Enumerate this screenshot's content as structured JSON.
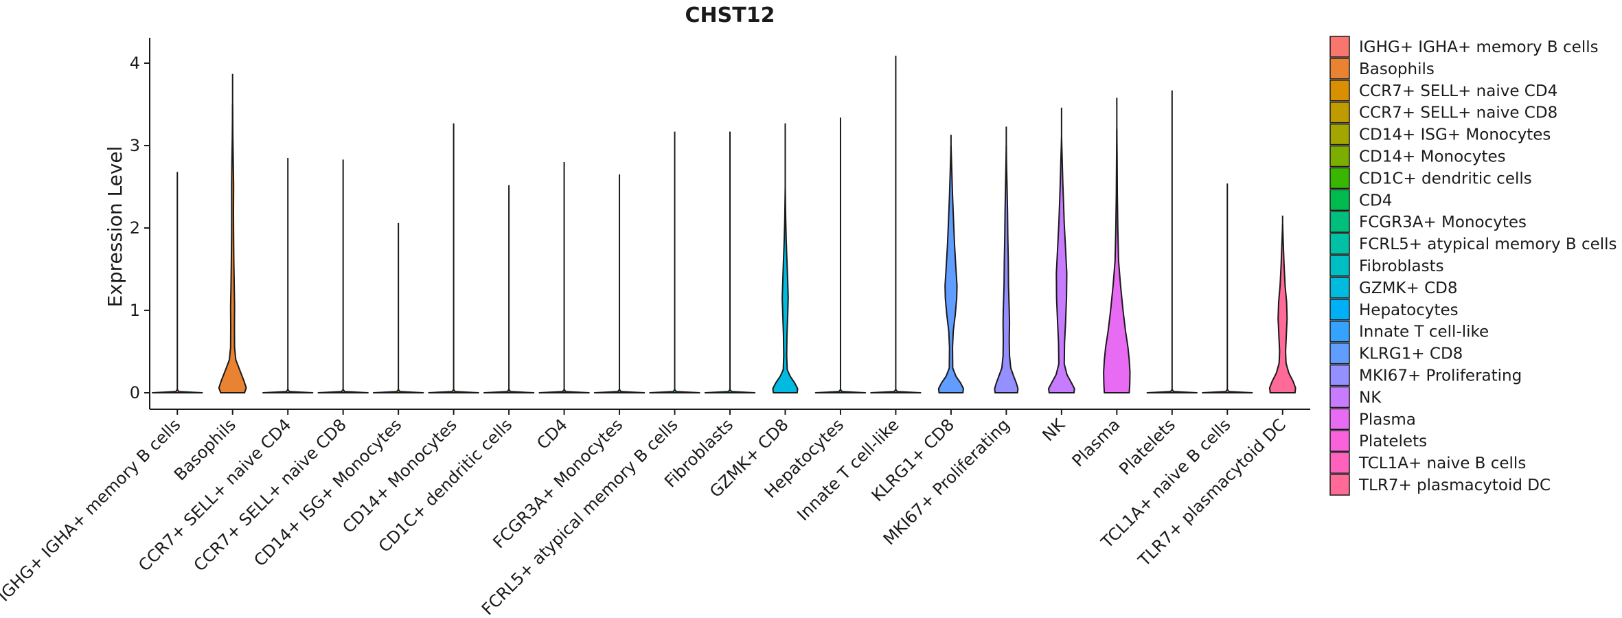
{
  "chart_data": {
    "type": "violin",
    "title": "CHST12",
    "xlabel": "",
    "ylabel": "Expression Level",
    "ylim": [
      -0.2,
      4.3
    ],
    "yticks": [
      0,
      1,
      2,
      3,
      4
    ],
    "legend_position": "right",
    "categories": [
      {
        "name": "IGHG+ IGHA+ memory B cells",
        "legend_label": " IGHG+ IGHA+ memory B cells",
        "color": "#F8766D",
        "max": 2.68,
        "shape": "flat"
      },
      {
        "name": "Basophils",
        "legend_label": "Basophils",
        "color": "#EA8331",
        "max": 3.87,
        "shape": "basophils"
      },
      {
        "name": "CCR7+ SELL+ naive CD4",
        "legend_label": "CCR7+ SELL+ naive CD4",
        "color": "#D89000",
        "max": 2.85,
        "shape": "flat"
      },
      {
        "name": "CCR7+ SELL+ naive CD8",
        "legend_label": "CCR7+ SELL+ naive CD8",
        "color": "#C09B00",
        "max": 2.83,
        "shape": "flat"
      },
      {
        "name": "CD14+ ISG+ Monocytes",
        "legend_label": "CD14+ ISG+ Monocytes",
        "color": "#A3A500",
        "max": 2.06,
        "shape": "flat"
      },
      {
        "name": "CD14+ Monocytes",
        "legend_label": "CD14+ Monocytes",
        "color": "#7CAE00",
        "max": 3.27,
        "shape": "flat"
      },
      {
        "name": "CD1C+ dendritic cells",
        "legend_label": "CD1C+ dendritic cells",
        "color": "#39B600",
        "max": 2.52,
        "shape": "flat"
      },
      {
        "name": "CD4",
        "legend_label": "CD4",
        "color": "#00BB4E",
        "max": 2.8,
        "shape": "flat"
      },
      {
        "name": "FCGR3A+ Monocytes",
        "legend_label": "FCGR3A+ Monocytes",
        "color": "#00BF7D",
        "max": 2.65,
        "shape": "flat"
      },
      {
        "name": "FCRL5+ atypical memory B cells",
        "legend_label": "FCRL5+ atypical memory B cells",
        "color": "#00C1A3",
        "max": 3.17,
        "shape": "flat"
      },
      {
        "name": "Fibroblasts",
        "legend_label": "Fibroblasts",
        "color": "#00BFC4",
        "max": 3.17,
        "shape": "flat"
      },
      {
        "name": "GZMK+ CD8",
        "legend_label": "GZMK+ CD8",
        "color": "#00BAE0",
        "max": 3.27,
        "shape": "gzmk"
      },
      {
        "name": "Hepatocytes",
        "legend_label": "Hepatocytes",
        "color": "#00B0F6",
        "max": 3.34,
        "shape": "flat"
      },
      {
        "name": "Innate T cell-like",
        "legend_label": "Innate T cell-like",
        "color": "#35A2FF",
        "max": 4.09,
        "shape": "flat"
      },
      {
        "name": "KLRG1+ CD8",
        "legend_label": "KLRG1+ CD8",
        "color": "#619CFF",
        "max": 3.13,
        "shape": "klrg1"
      },
      {
        "name": "MKI67+ Proliferating",
        "legend_label": "MKI67+ Proliferating",
        "color": "#9590FF",
        "max": 3.23,
        "shape": "mki67"
      },
      {
        "name": "NK",
        "legend_label": "NK",
        "color": "#C77CFF",
        "max": 3.46,
        "shape": "nk"
      },
      {
        "name": "Plasma",
        "legend_label": "Plasma",
        "color": "#E76BF3",
        "max": 3.58,
        "shape": "plasma"
      },
      {
        "name": "Platelets",
        "legend_label": "Platelets",
        "color": "#FA62DB",
        "max": 3.67,
        "shape": "flat"
      },
      {
        "name": "TCL1A+ naive B cells",
        "legend_label": "TCL1A+ naive B cells",
        "color": "#FF62BC",
        "max": 2.54,
        "shape": "flat"
      },
      {
        "name": "TLR7+ plasmacytoid DC",
        "legend_label": "TLR7+ plasmacytoid DC",
        "color": "#FF6A98",
        "max": 2.15,
        "shape": "tlr7"
      }
    ]
  }
}
